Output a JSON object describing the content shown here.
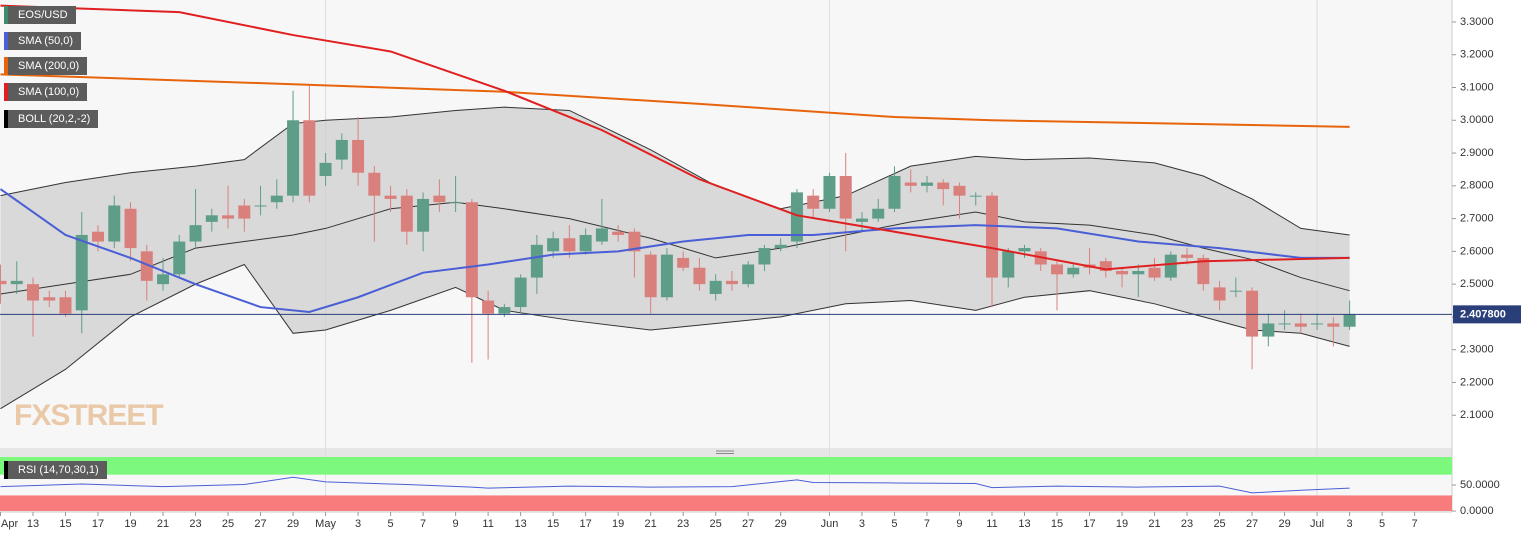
{
  "chart_data": [
    {
      "type": "candlestick",
      "name": "EOS/USD",
      "up_color": "#5e9e88",
      "down_color": "#d9807c",
      "x": [
        0,
        1,
        2,
        3,
        4,
        5,
        6,
        7,
        8,
        9,
        10,
        11,
        12,
        13,
        14,
        15,
        16,
        17,
        18,
        19,
        20,
        21,
        22,
        23,
        24,
        25,
        26,
        27,
        28,
        29,
        30,
        31,
        32,
        33,
        34,
        35,
        36,
        37,
        38,
        39,
        40,
        41,
        42,
        43,
        44,
        45,
        46,
        47,
        48,
        49,
        50,
        51,
        52,
        53,
        54,
        55,
        56,
        57,
        58,
        59,
        60,
        61,
        62,
        63,
        64,
        65,
        66,
        67,
        68,
        69,
        70,
        71,
        72,
        73,
        74,
        75,
        76,
        77,
        78,
        79,
        80,
        81,
        82,
        83
      ],
      "open": [
        2.51,
        2.5,
        2.5,
        2.46,
        2.46,
        2.42,
        2.66,
        2.63,
        2.73,
        2.6,
        2.5,
        2.53,
        2.63,
        2.69,
        2.71,
        2.74,
        2.74,
        2.75,
        2.77,
        3.0,
        2.83,
        2.88,
        2.94,
        2.84,
        2.77,
        2.77,
        2.66,
        2.77,
        2.75,
        2.75,
        2.45,
        2.41,
        2.43,
        2.52,
        2.6,
        2.64,
        2.6,
        2.63,
        2.66,
        2.66,
        2.59,
        2.46,
        2.58,
        2.55,
        2.47,
        2.51,
        2.5,
        2.56,
        2.61,
        2.63,
        2.77,
        2.73,
        2.83,
        2.69,
        2.7,
        2.73,
        2.81,
        2.8,
        2.81,
        2.8,
        2.77,
        2.77,
        2.52,
        2.6,
        2.6,
        2.56,
        2.53,
        2.56,
        2.57,
        2.54,
        2.53,
        2.55,
        2.52,
        2.59,
        2.58,
        2.49,
        2.48,
        2.48,
        2.34,
        2.38,
        2.38,
        2.38,
        2.38,
        2.37
      ],
      "high": [
        2.56,
        2.57,
        2.52,
        2.48,
        2.48,
        2.72,
        2.68,
        2.77,
        2.75,
        2.62,
        2.58,
        2.65,
        2.79,
        2.73,
        2.8,
        2.76,
        2.8,
        2.82,
        3.09,
        3.11,
        2.9,
        2.96,
        3.01,
        2.86,
        2.8,
        2.79,
        2.78,
        2.82,
        2.83,
        2.76,
        2.48,
        2.44,
        2.53,
        2.65,
        2.66,
        2.68,
        2.67,
        2.76,
        2.68,
        2.67,
        2.6,
        2.61,
        2.6,
        2.58,
        2.53,
        2.54,
        2.57,
        2.62,
        2.64,
        2.79,
        2.79,
        2.84,
        2.9,
        2.72,
        2.76,
        2.86,
        2.85,
        2.83,
        2.82,
        2.81,
        2.78,
        2.78,
        2.61,
        2.62,
        2.61,
        2.57,
        2.56,
        2.61,
        2.58,
        2.55,
        2.56,
        2.58,
        2.6,
        2.61,
        2.59,
        2.51,
        2.52,
        2.49,
        2.41,
        2.42,
        2.41,
        2.41,
        2.4,
        2.45
      ],
      "low": [
        2.44,
        2.47,
        2.34,
        2.43,
        2.4,
        2.35,
        2.6,
        2.61,
        2.57,
        2.45,
        2.48,
        2.52,
        2.61,
        2.66,
        2.67,
        2.66,
        2.71,
        2.73,
        2.75,
        2.75,
        2.8,
        2.85,
        2.8,
        2.63,
        2.72,
        2.62,
        2.6,
        2.72,
        2.72,
        2.26,
        2.27,
        2.4,
        2.41,
        2.47,
        2.58,
        2.58,
        2.59,
        2.62,
        2.63,
        2.52,
        2.41,
        2.45,
        2.54,
        2.48,
        2.45,
        2.48,
        2.49,
        2.54,
        2.6,
        2.61,
        2.7,
        2.72,
        2.6,
        2.66,
        2.69,
        2.72,
        2.78,
        2.78,
        2.74,
        2.7,
        2.74,
        2.43,
        2.49,
        2.58,
        2.54,
        2.42,
        2.52,
        2.53,
        2.52,
        2.49,
        2.46,
        2.51,
        2.51,
        2.56,
        2.48,
        2.42,
        2.46,
        2.24,
        2.31,
        2.36,
        2.35,
        2.36,
        2.31,
        2.36
      ],
      "close": [
        2.5,
        2.51,
        2.45,
        2.45,
        2.41,
        2.65,
        2.63,
        2.74,
        2.61,
        2.51,
        2.53,
        2.63,
        2.68,
        2.71,
        2.7,
        2.7,
        2.74,
        2.77,
        3.0,
        2.77,
        2.87,
        2.94,
        2.84,
        2.77,
        2.76,
        2.66,
        2.76,
        2.75,
        2.75,
        2.46,
        2.41,
        2.43,
        2.52,
        2.62,
        2.64,
        2.6,
        2.65,
        2.67,
        2.65,
        2.6,
        2.46,
        2.59,
        2.55,
        2.5,
        2.51,
        2.5,
        2.56,
        2.61,
        2.62,
        2.78,
        2.73,
        2.83,
        2.7,
        2.7,
        2.73,
        2.83,
        2.8,
        2.81,
        2.79,
        2.77,
        2.77,
        2.52,
        2.6,
        2.61,
        2.56,
        2.53,
        2.55,
        2.55,
        2.54,
        2.53,
        2.54,
        2.52,
        2.59,
        2.58,
        2.5,
        2.45,
        2.48,
        2.34,
        2.38,
        2.38,
        2.37,
        2.38,
        2.37,
        2.4078
      ],
      "last_price": {
        "value": 2.4078,
        "label": "2.407800"
      },
      "bollinger": {
        "name": "BOLL (20,2,-2)",
        "color": "#333333",
        "fill": "#cfcfcf",
        "x": [
          0,
          4,
          8,
          12,
          15,
          18,
          20,
          24,
          28,
          31,
          35,
          40,
          44,
          48,
          52,
          56,
          60,
          63,
          67,
          71,
          74,
          77,
          80,
          83
        ],
        "upper": [
          2.77,
          2.81,
          2.84,
          2.86,
          2.88,
          2.99,
          3.0,
          3.01,
          3.03,
          3.04,
          3.03,
          2.91,
          2.8,
          2.73,
          2.77,
          2.86,
          2.89,
          2.88,
          2.885,
          2.87,
          2.83,
          2.76,
          2.67,
          2.65
        ],
        "middle": [
          2.47,
          2.5,
          2.53,
          2.61,
          2.63,
          2.65,
          2.67,
          2.73,
          2.75,
          2.73,
          2.7,
          2.64,
          2.58,
          2.61,
          2.65,
          2.69,
          2.72,
          2.69,
          2.68,
          2.65,
          2.61,
          2.575,
          2.52,
          2.48
        ],
        "lower": [
          2.12,
          2.24,
          2.4,
          2.5,
          2.56,
          2.35,
          2.36,
          2.42,
          2.49,
          2.42,
          2.39,
          2.36,
          2.38,
          2.4,
          2.44,
          2.45,
          2.42,
          2.46,
          2.48,
          2.44,
          2.4,
          2.36,
          2.35,
          2.31
        ]
      },
      "series": [
        {
          "name": "SMA (50,0)",
          "color": "#4a5fd6",
          "x": [
            0,
            4,
            8,
            12,
            16,
            19,
            22,
            26,
            30,
            34,
            38,
            42,
            46,
            50,
            55,
            60,
            65,
            70,
            75,
            80,
            83
          ],
          "values": [
            2.79,
            2.65,
            2.58,
            2.5,
            2.43,
            2.415,
            2.46,
            2.535,
            2.56,
            2.59,
            2.6,
            2.63,
            2.65,
            2.65,
            2.67,
            2.68,
            2.67,
            2.63,
            2.61,
            2.58,
            2.58
          ]
        },
        {
          "name": "SMA (200,0)",
          "color": "#e8640c",
          "x": [
            0,
            18,
            31,
            43,
            55,
            61,
            83
          ],
          "values": [
            3.14,
            3.11,
            3.087,
            3.05,
            3.01,
            3.0,
            2.98
          ]
        },
        {
          "name": "SMA (100,0)",
          "color": "#e02020",
          "x": [
            0,
            11,
            18,
            24,
            31,
            37,
            43,
            49,
            55,
            61,
            68,
            74,
            83
          ],
          "values": [
            3.35,
            3.33,
            3.26,
            3.21,
            3.09,
            2.97,
            2.82,
            2.71,
            2.66,
            2.61,
            2.545,
            2.57,
            2.58
          ]
        }
      ],
      "xlim": [
        -0.03,
        89.3
      ],
      "ylim": [
        2.0,
        3.367
      ],
      "yticks": [
        {
          "value": 3.3,
          "label": "3.3000"
        },
        {
          "value": 3.2,
          "label": "3.2000"
        },
        {
          "value": 3.1,
          "label": "3.1000"
        },
        {
          "value": 3.0,
          "label": "3.0000"
        },
        {
          "value": 2.9,
          "label": "2.9000"
        },
        {
          "value": 2.8,
          "label": "2.8000"
        },
        {
          "value": 2.7,
          "label": "2.7000"
        },
        {
          "value": 2.6,
          "label": "2.6000"
        },
        {
          "value": 2.5,
          "label": "2.5000"
        },
        {
          "value": 2.4,
          "label": "2.4000"
        },
        {
          "value": 2.3,
          "label": "2.3000"
        },
        {
          "value": 2.2,
          "label": "2.2000"
        },
        {
          "value": 2.1,
          "label": "2.1000"
        }
      ],
      "month_lines": [
        20,
        51,
        81
      ],
      "watermark": "FXSTREET"
    },
    {
      "type": "line",
      "series": [
        {
          "name": "RSI (14,70,30,1)",
          "color": "#4a5fd6",
          "x": [
            0,
            5,
            10,
            15,
            18,
            20,
            25,
            29,
            30,
            35,
            40,
            45,
            49,
            50,
            55,
            60,
            61,
            65,
            70,
            75,
            77,
            80,
            83
          ],
          "values": [
            47,
            52,
            47,
            51,
            65,
            56,
            51,
            46,
            44,
            48,
            46,
            47,
            60,
            55,
            54,
            53,
            45,
            48,
            46,
            48,
            35,
            40,
            44
          ]
        }
      ],
      "overbought": {
        "value": 70,
        "color": "#7cf87c"
      },
      "oversold": {
        "value": 30,
        "color": "#f87c7c"
      },
      "xlim": [
        -0.03,
        89.3
      ],
      "ylim": [
        0,
        104
      ],
      "yticks": [
        {
          "value": 50,
          "label": "50.0000"
        },
        {
          "value": 0,
          "label": "0.0000"
        }
      ],
      "xticks": [
        {
          "value": 0,
          "label": "Apr"
        },
        {
          "value": 2,
          "label": "13"
        },
        {
          "value": 4,
          "label": "15"
        },
        {
          "value": 6,
          "label": "17"
        },
        {
          "value": 8,
          "label": "19"
        },
        {
          "value": 10,
          "label": "21"
        },
        {
          "value": 12,
          "label": "23"
        },
        {
          "value": 14,
          "label": "25"
        },
        {
          "value": 16,
          "label": "27"
        },
        {
          "value": 18,
          "label": "29"
        },
        {
          "value": 20,
          "label": "May"
        },
        {
          "value": 22,
          "label": "3"
        },
        {
          "value": 24,
          "label": "5"
        },
        {
          "value": 26,
          "label": "7"
        },
        {
          "value": 28,
          "label": "9"
        },
        {
          "value": 30,
          "label": "11"
        },
        {
          "value": 32,
          "label": "13"
        },
        {
          "value": 34,
          "label": "15"
        },
        {
          "value": 36,
          "label": "17"
        },
        {
          "value": 38,
          "label": "19"
        },
        {
          "value": 40,
          "label": "21"
        },
        {
          "value": 42,
          "label": "23"
        },
        {
          "value": 44,
          "label": "25"
        },
        {
          "value": 46,
          "label": "27"
        },
        {
          "value": 48,
          "label": "29"
        },
        {
          "value": 51,
          "label": "Jun"
        },
        {
          "value": 53,
          "label": "3"
        },
        {
          "value": 55,
          "label": "5"
        },
        {
          "value": 57,
          "label": "7"
        },
        {
          "value": 59,
          "label": "9"
        },
        {
          "value": 61,
          "label": "11"
        },
        {
          "value": 63,
          "label": "13"
        },
        {
          "value": 65,
          "label": "15"
        },
        {
          "value": 67,
          "label": "17"
        },
        {
          "value": 69,
          "label": "19"
        },
        {
          "value": 71,
          "label": "21"
        },
        {
          "value": 73,
          "label": "23"
        },
        {
          "value": 75,
          "label": "25"
        },
        {
          "value": 77,
          "label": "27"
        },
        {
          "value": 79,
          "label": "29"
        },
        {
          "value": 81,
          "label": "Jul"
        },
        {
          "value": 83,
          "label": "3"
        },
        {
          "value": 85,
          "label": "5"
        },
        {
          "value": 87,
          "label": "7"
        }
      ]
    }
  ]
}
